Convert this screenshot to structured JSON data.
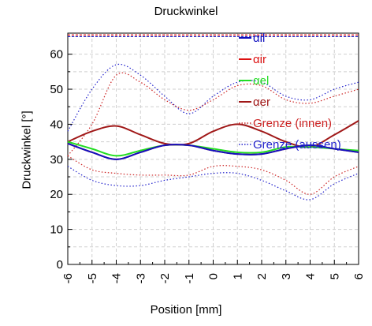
{
  "chart_data": {
    "type": "line",
    "title": "Druckwinkel",
    "xlabel": "Position [mm]",
    "ylabel": "Druckwinkel [°]",
    "xlim": [
      -6,
      6
    ],
    "ylim": [
      0,
      66
    ],
    "grid": true,
    "legend_position": "top-right",
    "x_ticks": [
      "-6",
      "-5",
      "-4",
      "-3",
      "-2",
      "-1",
      "0",
      "1",
      "2",
      "3",
      "4",
      "5",
      "6"
    ],
    "y_ticks": [
      "0",
      "10",
      "20",
      "30",
      "40",
      "50",
      "60"
    ],
    "x": [
      -6,
      -5,
      -4,
      -3,
      -2,
      -1,
      0,
      1,
      2,
      3,
      4,
      5,
      6
    ],
    "series": [
      {
        "name": "αil",
        "color": "#1010c0",
        "style": "solid",
        "values": [
          34.5,
          32,
          30,
          32,
          34,
          34,
          32.5,
          31.5,
          31.5,
          33,
          34,
          33,
          32
        ]
      },
      {
        "name": "αir",
        "color": "#dd1111",
        "style": "solid",
        "values": [
          34.5,
          32,
          30,
          32,
          34,
          34,
          32.5,
          31.5,
          31.5,
          33,
          34,
          33,
          32
        ]
      },
      {
        "name": "αel",
        "color": "#22dd22",
        "style": "solid",
        "values": [
          35,
          33,
          31,
          32.5,
          34,
          34,
          33,
          32,
          32,
          33.5,
          33.5,
          33,
          32.5
        ]
      },
      {
        "name": "αer",
        "color": "#a01818",
        "style": "solid",
        "values": [
          35,
          38,
          39.5,
          37,
          34.5,
          34.5,
          38,
          40,
          38,
          35,
          33.5,
          37,
          41
        ]
      },
      {
        "name": "Grenze (innen)",
        "color": "#cc2222",
        "style": "dotted",
        "values": [
          31,
          40,
          54,
          52,
          47,
          44,
          47,
          51,
          51,
          47,
          46,
          48,
          50
        ]
      },
      {
        "name": "Grenze (aussen)",
        "color": "#2222cc",
        "style": "dotted",
        "values": [
          38,
          50,
          57,
          54,
          48,
          43,
          48,
          52,
          52,
          48,
          47,
          50,
          52
        ]
      },
      {
        "name": "",
        "color": "#cc2222",
        "style": "dotted",
        "values": [
          31,
          27,
          26,
          25.5,
          25.5,
          25.5,
          28,
          28,
          27,
          24,
          20,
          25,
          28
        ]
      },
      {
        "name": "",
        "color": "#2222cc",
        "style": "dotted",
        "values": [
          28,
          24,
          22.5,
          22.5,
          24,
          25,
          26,
          26,
          24,
          21,
          18.5,
          23,
          26
        ]
      },
      {
        "name": "",
        "color": "#dd1111",
        "style": "dashed",
        "values": [
          65.5,
          65.5,
          65.5,
          65.5,
          65.5,
          65.5,
          65.5,
          65.5,
          65.5,
          65.5,
          65.5,
          65.5,
          65.5
        ]
      },
      {
        "name": "",
        "color": "#1010c0",
        "style": "dashed",
        "values": [
          65,
          65,
          65,
          65,
          65,
          65,
          65,
          65,
          65,
          65,
          65,
          65,
          65
        ]
      }
    ]
  }
}
